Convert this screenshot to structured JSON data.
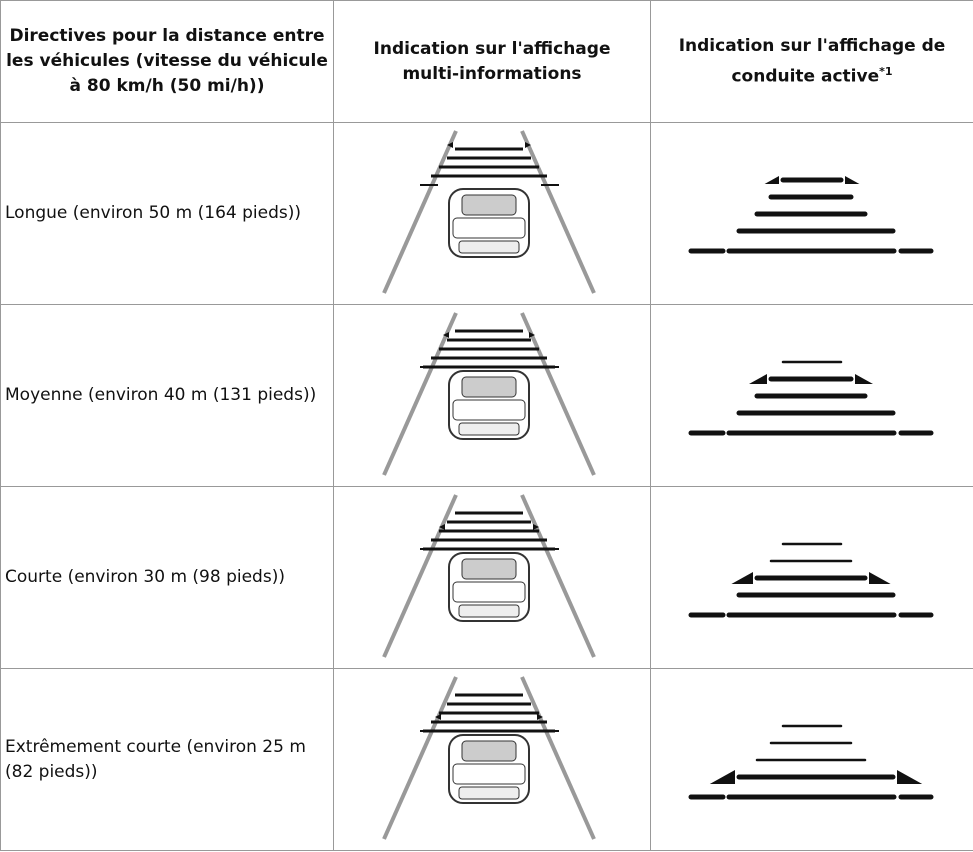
{
  "table": {
    "header": [
      "Directives pour la distance entre les véhicules (vitesse du véhicule à 80 km/h (50 mi/h))",
      "Indication sur l'affichage multi-informations",
      "Indication sur l'affichage de conduite active"
    ],
    "header_note": "*1",
    "rows": [
      [
        "Longue (environ 50 m (164 pieds))"
      ],
      [
        "Moyenne (environ 40 m (131 pieds))"
      ],
      [
        "Courte (environ 30 m (98 pieds))"
      ],
      [
        "Extrêmement courte (environ 25 m (82 pieds))"
      ]
    ]
  }
}
